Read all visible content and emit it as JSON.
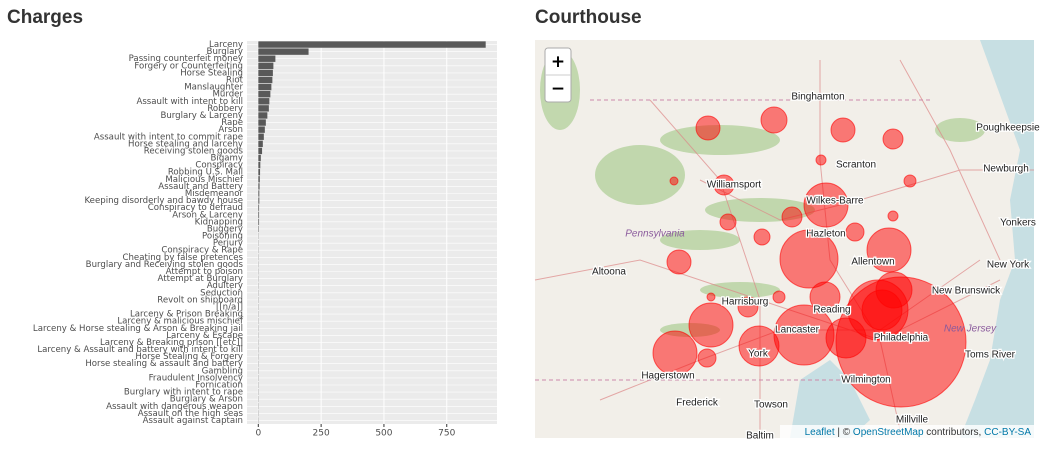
{
  "chart_data": {
    "type": "hbar",
    "title": "Charges",
    "color": "#595959",
    "categories": [
      "Larceny",
      "Burglary",
      "Passing counterfeit money",
      "Forgery or Counterfeiting",
      "Horse Stealing",
      "Riot",
      "Manslaughter",
      "Murder",
      "Assault with intent to kill",
      "Robbery",
      "Burglary & Larceny",
      "Rape",
      "Arson",
      "Assault with intent to commit rape",
      "Horse stealing and larceny",
      "Receiving stolen goods",
      "Bigamy",
      "Conspiracy",
      "Robbing U.S. Mail",
      "Malicious Mischief",
      "Assault and Battery",
      "Misdemeanor",
      "Keeping disorderly and bawdy house",
      "Conspiracy to defraud",
      "Arson & Larceny",
      "Kidnapping",
      "Buggery",
      "Poisoning",
      "Perjury",
      "Conspiracy & Rape",
      "Cheating by false pretences",
      "Burglary and Receiving stolen goods",
      "Attempt to poison",
      "Attempt at Burglary",
      "Adultery",
      "Seduction",
      "Revolt on shipboard",
      "[[n/a]]",
      "Larceny & Prison Breaking",
      "Larceny & malicious mischief",
      "Larceny & Horse stealing & Arson & Breaking jail",
      "Larceny & Escape",
      "Larceny & Breaking prison [[etc]]",
      "Larceny & Assault and battery with intent to kill",
      "Horse Stealing & Forgery",
      "Horse stealing & assault and battery",
      "Gambling",
      "Fraudulent Insolvency",
      "Fornication",
      "Burglary with intent to rape",
      "Burglary & Arson",
      "Assault with dangerous weapon",
      "Assault on the high seas",
      "Assault against captain"
    ],
    "values": [
      905,
      200,
      68,
      60,
      58,
      56,
      52,
      48,
      44,
      42,
      36,
      30,
      26,
      22,
      18,
      15,
      10,
      8,
      7,
      6,
      5,
      4,
      4,
      3,
      3,
      3,
      2,
      1,
      1,
      1,
      1,
      1,
      1,
      1,
      1,
      1,
      1,
      1,
      1,
      1,
      1,
      1,
      1,
      1,
      1,
      1,
      1,
      1,
      1,
      1,
      1,
      1,
      1,
      1
    ],
    "xlim": [
      -45,
      950
    ],
    "xticks": [
      0,
      250,
      500,
      750
    ],
    "grid": true
  },
  "map": {
    "title": "Courthouse",
    "zoom_in": "+",
    "zoom_out": "−",
    "places": [
      "Binghamton",
      "Poughkeepsie",
      "Scranton",
      "Newburgh",
      "Williamsport",
      "Wilkes-Barre",
      "Yonkers",
      "Hazleton",
      "Allentown",
      "New York",
      "Altoona",
      "New Brunswick",
      "Harrisburg",
      "Reading",
      "Lancaster",
      "Philadelphia",
      "York",
      "Toms River",
      "Hagerstown",
      "Wilmington",
      "Frederick",
      "Towson",
      "Millville",
      "Baltim"
    ],
    "states": [
      "Pennsylvania",
      "New Jersey"
    ],
    "attribution": {
      "leaflet": "Leaflet",
      "sep": " | © ",
      "osm": "OpenStreetMap",
      "contrib": " contributors, ",
      "license": "CC-BY-SA"
    }
  }
}
